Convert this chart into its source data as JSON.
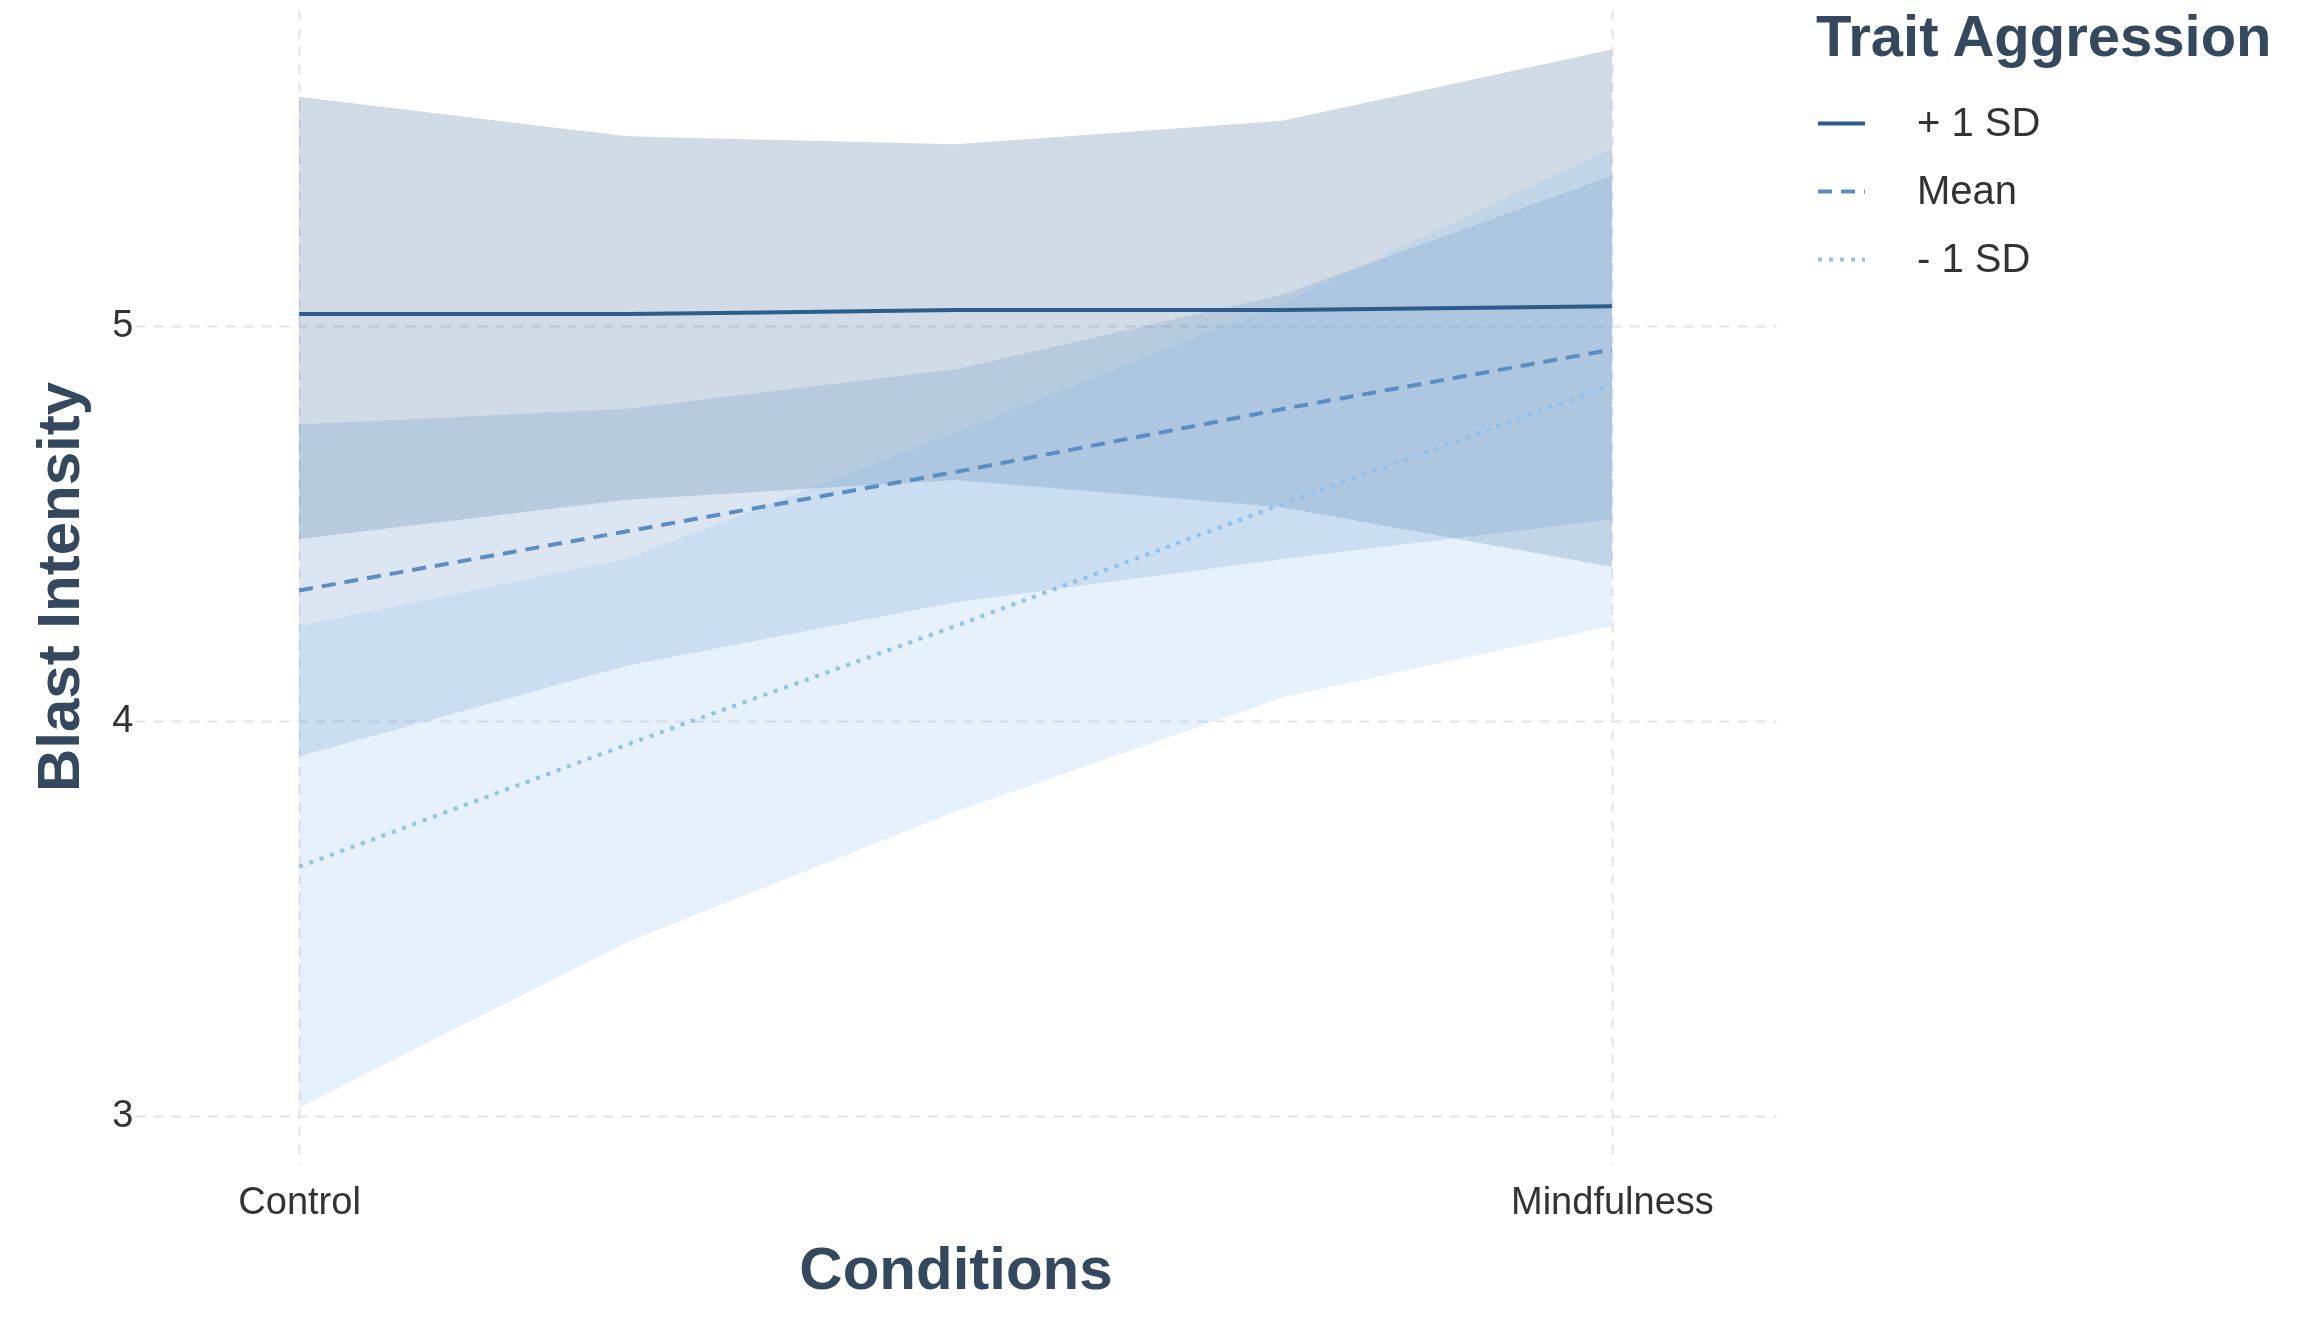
{
  "chart_data": {
    "type": "line",
    "xlabel": "Conditions",
    "ylabel": "Blast Intensity",
    "legend_title": "Trait Aggression",
    "legend": "right",
    "grid": true,
    "marker": "none",
    "categories": [
      "Control",
      null,
      null,
      null,
      "Mindfulness"
    ],
    "ylim": [
      2.88,
      5.8
    ],
    "yticks": [
      3,
      4,
      5
    ],
    "series": [
      {
        "name": "+ 1 SD",
        "color": "#2e5c8c",
        "line_style": "solid",
        "values": [
          5.03,
          5.03,
          5.04,
          5.04,
          5.05
        ],
        "lower": [
          4.46,
          4.56,
          4.61,
          4.54,
          4.39
        ],
        "upper": [
          5.58,
          5.48,
          5.46,
          5.52,
          5.7
        ]
      },
      {
        "name": "Mean",
        "color": "#5b8dc2",
        "line_style": "dashed",
        "values": [
          4.33,
          4.48,
          4.63,
          4.79,
          4.94
        ],
        "lower": [
          3.91,
          4.14,
          4.3,
          4.41,
          4.51
        ],
        "upper": [
          4.75,
          4.79,
          4.89,
          5.08,
          5.38
        ]
      },
      {
        "name": "- 1 SD",
        "color": "#8ec1ee",
        "line_style": "dotted",
        "values": [
          3.63,
          3.94,
          4.24,
          4.55,
          4.85
        ],
        "lower": [
          3.02,
          3.44,
          3.77,
          4.06,
          4.24
        ],
        "upper": [
          4.24,
          4.41,
          4.73,
          5.06,
          5.45
        ]
      }
    ]
  }
}
